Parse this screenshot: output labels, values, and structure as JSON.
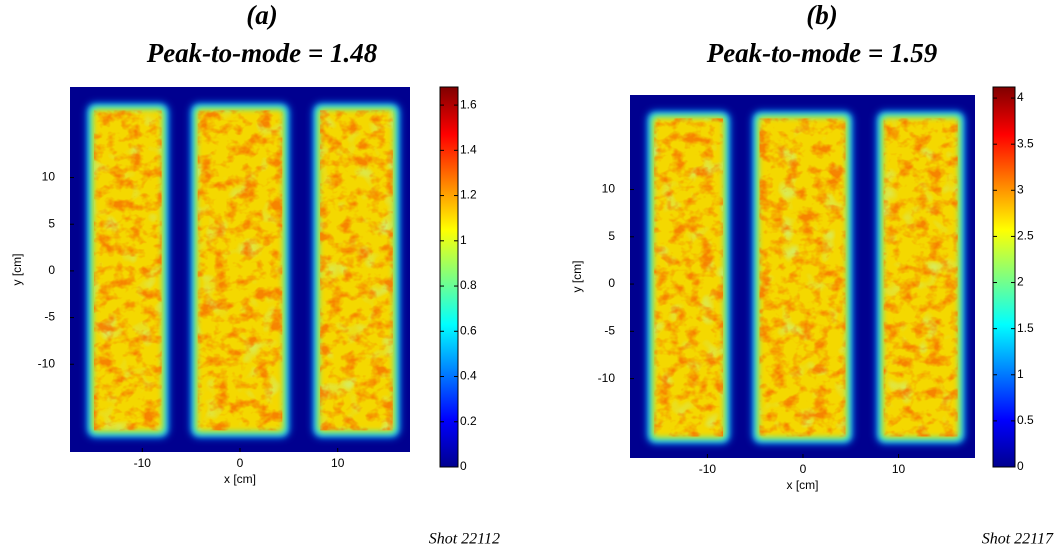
{
  "chart_data": [
    {
      "type": "heatmap",
      "title": "(a)",
      "subtitle": "Peak-to-mode = 1.48",
      "x_label": "x [cm]",
      "y_label": "y [cm]",
      "xlim": [
        -17.4,
        17.4
      ],
      "ylim": [
        -19.4,
        19.7
      ],
      "xticks": [
        -10,
        0,
        10
      ],
      "yticks": [
        -10,
        -5,
        0,
        5,
        10
      ],
      "colorbar": {
        "colormap": "jet",
        "lim": [
          0,
          1.68
        ],
        "ticks": [
          0,
          0.2,
          0.4,
          0.6,
          0.8,
          1,
          1.2,
          1.4,
          1.6
        ]
      },
      "annotation": "Shot 22112"
    },
    {
      "type": "heatmap",
      "title": "(b)",
      "subtitle": "Peak-to-mode = 1.59",
      "x_label": "x [cm]",
      "y_label": "y [cm]",
      "xlim": [
        -18.1,
        18
      ],
      "ylim": [
        -18.4,
        20
      ],
      "xticks": [
        -10,
        0,
        10
      ],
      "yticks": [
        -10,
        -5,
        0,
        5,
        10
      ],
      "colorbar": {
        "colormap": "jet",
        "lim": [
          0,
          4.12
        ],
        "ticks": [
          0,
          0.5,
          1,
          1.5,
          2,
          2.5,
          3,
          3.5,
          4
        ]
      },
      "annotation": "Shot 22117"
    }
  ]
}
